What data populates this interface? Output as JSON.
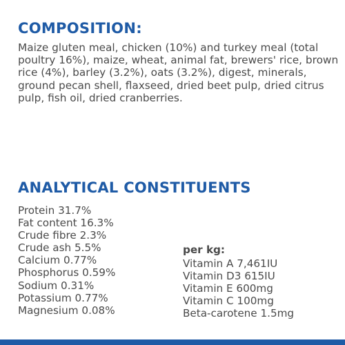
{
  "composition": {
    "heading": "COMPOSITION:",
    "text": "Maize gluten meal, chicken (10%) and turkey meal (total poultry 16%), maize, wheat, animal fat, brewers' rice, brown rice (4%), barley (3.2%), oats (3.2%), digest, minerals, ground pecan shell, flaxseed, dried beet pulp, dried citrus pulp, fish oil, dried cranberries."
  },
  "analytical": {
    "heading": "ANALYTICAL CONSTITUENTS",
    "constituents": [
      "Protein 31.7%",
      "Fat content 16.3%",
      "Crude fibre 2.3%",
      "Crude ash 5.5%",
      "Calcium 0.77%",
      "Phosphorus 0.59%",
      "Sodium 0.31%",
      "Potassium 0.77%",
      "Magnesium 0.08%"
    ],
    "per_kg_title": "per kg:",
    "vitamins": [
      "Vitamin A 7,461IU",
      "Vitamin D3 615IU",
      "Vitamin E 600mg",
      "Vitamin C 100mg",
      "Beta-carotene 1.5mg"
    ]
  },
  "colors": {
    "accent": "#1f5ba6",
    "text": "#4a4a4a"
  }
}
